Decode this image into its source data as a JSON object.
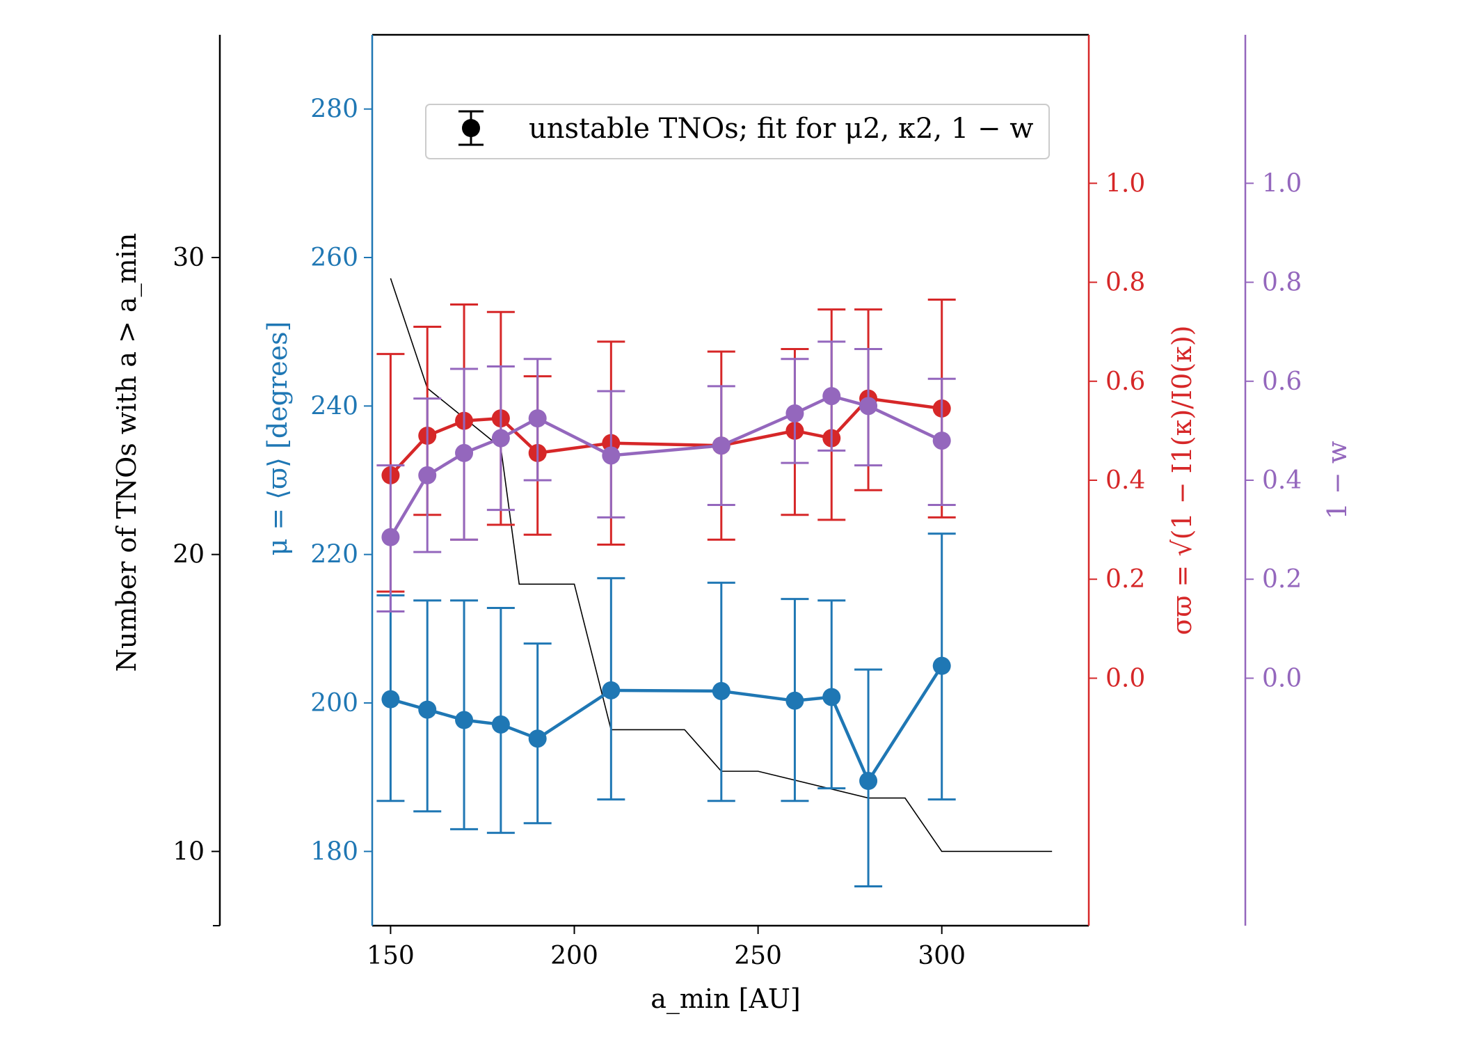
{
  "chart_data": {
    "type": "line",
    "x": [
      150,
      160,
      170,
      180,
      190,
      210,
      240,
      260,
      270,
      280,
      300
    ],
    "xlabel": "a_min [AU]",
    "xlim": [
      145,
      340
    ],
    "xticks": [
      "150",
      "200",
      "250",
      "300"
    ],
    "legend": {
      "label": "unstable TNOs; fit for μ2, κ2, 1 − w",
      "placement": "top-center"
    },
    "colors": {
      "mu": "#1f77b4",
      "sigma": "#d62728",
      "w": "#9467bd",
      "count": "#000000"
    },
    "axes": {
      "count": {
        "label": "Number of TNOs with a > a_min",
        "ylim": [
          7.5,
          37.5
        ],
        "ticks": [
          "10",
          "20",
          "30"
        ]
      },
      "mu": {
        "label": "μ = ⟨ϖ⟩ [degrees]",
        "ylim": [
          170,
          290
        ],
        "ticks": [
          "180",
          "200",
          "220",
          "240",
          "260",
          "280"
        ]
      },
      "sigma": {
        "label": "σϖ = √(1 − I1(κ)/I0(κ))",
        "ylim": [
          -0.5,
          1.3
        ],
        "ticks": [
          "0.0",
          "0.2",
          "0.4",
          "0.6",
          "0.8",
          "1.0"
        ]
      },
      "w": {
        "label": "1 − w",
        "ylim": [
          -0.5,
          1.3
        ],
        "ticks": [
          "0.0",
          "0.2",
          "0.4",
          "0.6",
          "0.8",
          "1.0"
        ]
      }
    },
    "series": [
      {
        "name": "mu",
        "axis": "mu",
        "values": [
          200.5,
          199.1,
          197.7,
          197.1,
          195.2,
          201.7,
          201.6,
          200.3,
          200.8,
          189.5,
          205.0
        ],
        "err_low": [
          186.8,
          185.4,
          183.0,
          182.5,
          183.8,
          187.0,
          186.8,
          186.8,
          188.5,
          175.3,
          187.0
        ],
        "err_high": [
          214.5,
          213.8,
          213.8,
          212.8,
          208.0,
          216.8,
          216.2,
          214.0,
          213.8,
          204.5,
          222.8
        ]
      },
      {
        "name": "sigma",
        "axis": "sigma",
        "values": [
          0.41,
          0.49,
          0.52,
          0.525,
          0.455,
          0.475,
          0.47,
          0.5,
          0.485,
          0.565,
          0.545
        ],
        "err_low": [
          0.175,
          0.33,
          0.28,
          0.31,
          0.29,
          0.27,
          0.28,
          0.33,
          0.32,
          0.38,
          0.325
        ],
        "err_high": [
          0.655,
          0.71,
          0.755,
          0.74,
          0.61,
          0.68,
          0.66,
          0.665,
          0.745,
          0.745,
          0.765
        ]
      },
      {
        "name": "w",
        "axis": "w",
        "values": [
          0.285,
          0.41,
          0.455,
          0.485,
          0.525,
          0.45,
          0.47,
          0.535,
          0.57,
          0.55,
          0.48
        ],
        "err_low": [
          0.135,
          0.255,
          0.28,
          0.34,
          0.4,
          0.325,
          0.35,
          0.435,
          0.46,
          0.43,
          0.35
        ],
        "err_high": [
          0.43,
          0.565,
          0.625,
          0.63,
          0.645,
          0.58,
          0.59,
          0.645,
          0.68,
          0.665,
          0.605
        ]
      }
    ],
    "count_line": {
      "x": [
        150,
        160,
        170,
        180,
        185,
        200,
        210,
        230,
        240,
        250,
        280,
        290,
        300,
        330
      ],
      "values": [
        29.3,
        25.6,
        24.6,
        23.6,
        19.0,
        19.0,
        14.1,
        14.1,
        12.7,
        12.7,
        11.8,
        11.8,
        10.0,
        10.0
      ]
    }
  }
}
